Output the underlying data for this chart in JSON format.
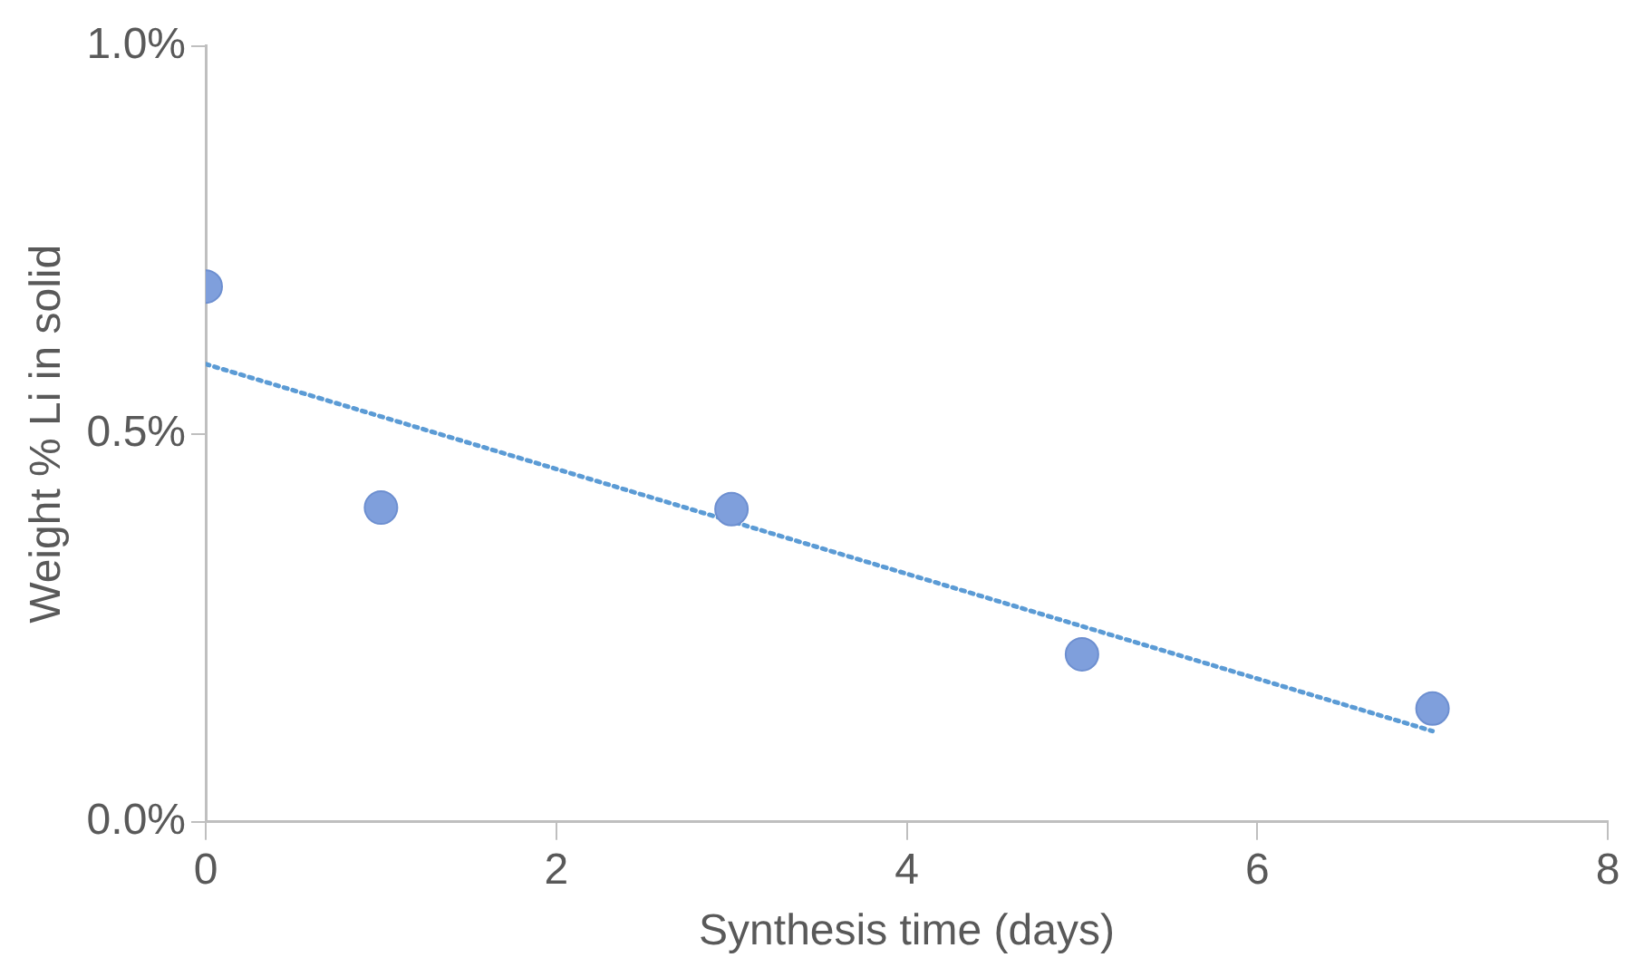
{
  "chart_data": {
    "type": "scatter",
    "xlabel": "Synthesis time (days)",
    "ylabel": "Weight % Li in solid",
    "xlim": [
      0,
      8
    ],
    "xticks": [
      0,
      2,
      4,
      6,
      8
    ],
    "ylim": [
      0,
      1
    ],
    "yticks": [
      {
        "value": 0,
        "label": "0.0%"
      },
      {
        "value": 0.5,
        "label": "0.5%"
      },
      {
        "value": 1,
        "label": "1.0%"
      }
    ],
    "grid": false,
    "legend": false,
    "marker": "circle",
    "series": [
      {
        "color": "#7f9fdc",
        "x": [
          0,
          1,
          3,
          5,
          7
        ],
        "values": [
          0.69,
          0.405,
          0.403,
          0.216,
          0.146
        ]
      },
      {
        "type": "line",
        "color": "#5b9bd5",
        "line_style": "dotted",
        "marker": "none",
        "x": [
          0,
          7
        ],
        "values": [
          0.59,
          0.117
        ]
      }
    ]
  }
}
